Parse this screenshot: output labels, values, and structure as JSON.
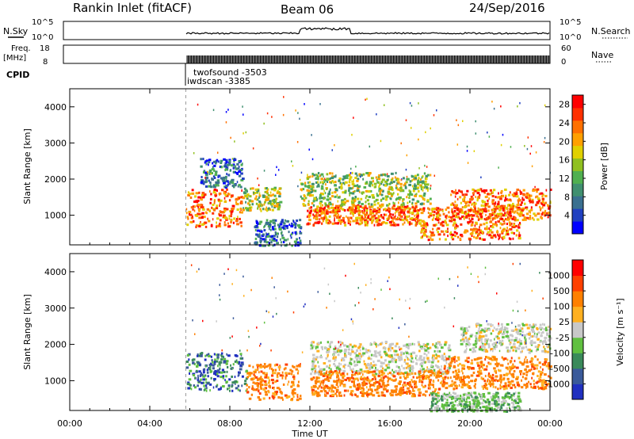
{
  "header": {
    "station": "Rankin Inlet (fitACF)",
    "beam": "Beam 06",
    "date": "24/Sep/2016"
  },
  "summary_panels": {
    "nsky_label": "N.Sky",
    "nsky_ticks": [
      "10^5",
      "10^0"
    ],
    "nsearch_label": "N.Search",
    "nsearch_ticks": [
      "10^5",
      "10^0"
    ],
    "freq_label_1": "Freq.",
    "freq_label_2": "[MHz]",
    "freq_ticks": [
      "18",
      "8"
    ],
    "nave_label": "Nave",
    "nave_ticks": [
      "60",
      "0"
    ],
    "cpid_label": "CPID",
    "cpid_1": "twofsound -3503",
    "cpid_2": "iwdscan -3385"
  },
  "chart_data": [
    {
      "type": "heatmap",
      "name": "power",
      "ylabel": "Slant Range [km]",
      "xlabel": "Time UT",
      "xlim": [
        0,
        24
      ],
      "ylim": [
        180,
        4500
      ],
      "xticks": [
        "00:00",
        "04:00",
        "08:00",
        "12:00",
        "16:00",
        "20:00",
        "00:00"
      ],
      "yticks": [
        "1000",
        "2000",
        "3000",
        "4000"
      ],
      "colorbar": {
        "label": "Power [dB]",
        "ticks": [
          "28",
          "24",
          "20",
          "16",
          "12",
          "8",
          "4"
        ],
        "range": [
          0,
          30
        ],
        "colors": [
          "#0000ff",
          "#2040c0",
          "#3a7090",
          "#409070",
          "#50b050",
          "#90c020",
          "#e0d000",
          "#ffa000",
          "#ff7000",
          "#ff3000",
          "#ff0000"
        ]
      },
      "bands": [
        {
          "t0": 5.8,
          "t1": 8.6,
          "r0": 700,
          "r1": 1750,
          "level": "high"
        },
        {
          "t0": 8.6,
          "t1": 10.5,
          "r0": 1150,
          "r1": 1800,
          "level": "mid"
        },
        {
          "t0": 11.8,
          "t1": 17.5,
          "r0": 750,
          "r1": 1300,
          "level": "high"
        },
        {
          "t0": 11.5,
          "t1": 18.0,
          "r0": 1300,
          "r1": 2200,
          "level": "mid"
        },
        {
          "t0": 17.5,
          "t1": 22.5,
          "r0": 350,
          "r1": 1250,
          "level": "high"
        },
        {
          "t0": 19.0,
          "t1": 24.0,
          "r0": 900,
          "r1": 1750,
          "level": "high"
        },
        {
          "t0": 9.2,
          "t1": 11.5,
          "r0": 180,
          "r1": 900,
          "level": "low"
        },
        {
          "t0": 6.5,
          "t1": 8.6,
          "r0": 1800,
          "r1": 2600,
          "level": "low"
        }
      ]
    },
    {
      "type": "heatmap",
      "name": "velocity",
      "ylabel": "Slant Range [km]",
      "xlabel": "Time UT",
      "xlim": [
        0,
        24
      ],
      "ylim": [
        180,
        4500
      ],
      "xticks": [
        "00:00",
        "04:00",
        "08:00",
        "12:00",
        "16:00",
        "20:00",
        "00:00"
      ],
      "yticks": [
        "1000",
        "2000",
        "3000",
        "4000"
      ],
      "colorbar": {
        "label": "Velocity [m s⁻¹]",
        "ticks": [
          "1000",
          "500",
          "100",
          "25",
          "-25",
          "-100",
          "-500",
          "-1000"
        ],
        "colors": [
          "#2030c0",
          "#3a5a9a",
          "#3a8a5a",
          "#60c040",
          "#c8c8c8",
          "#ffb020",
          "#ff8000",
          "#ff4000",
          "#ff0000"
        ]
      },
      "bands": [
        {
          "t0": 5.8,
          "t1": 8.8,
          "r0": 750,
          "r1": 1800,
          "class": "negative-blue"
        },
        {
          "t0": 8.8,
          "t1": 11.5,
          "r0": 500,
          "r1": 1500,
          "class": "orange"
        },
        {
          "t0": 12.0,
          "t1": 19.0,
          "r0": 1200,
          "r1": 2100,
          "class": "grey"
        },
        {
          "t0": 12.0,
          "t1": 18.5,
          "r0": 600,
          "r1": 1300,
          "class": "orange"
        },
        {
          "t0": 18.5,
          "t1": 24.0,
          "r0": 800,
          "r1": 1700,
          "class": "orange"
        },
        {
          "t0": 19.5,
          "t1": 24.0,
          "r0": 1800,
          "r1": 2600,
          "class": "grey"
        },
        {
          "t0": 18.0,
          "t1": 22.5,
          "r0": 180,
          "r1": 700,
          "class": "green"
        }
      ]
    }
  ]
}
